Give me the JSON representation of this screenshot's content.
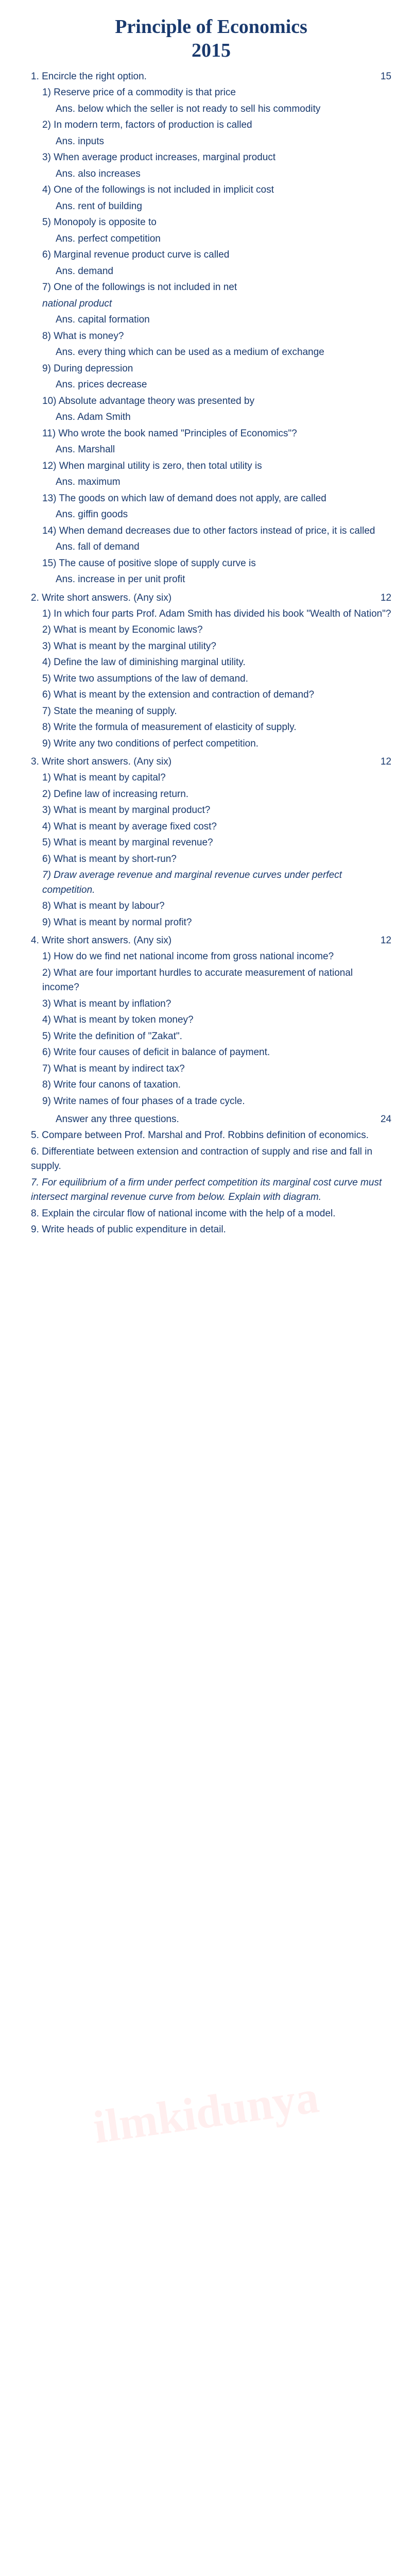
{
  "title": "Principle of Economics",
  "year": "2015",
  "s1": {
    "h": "1. Encircle the right option.",
    "m": "15",
    "q": [
      {
        "q": "1) Reserve price of a commodity is that price",
        "a": "Ans. below which the seller is not ready to sell his commodity"
      },
      {
        "q": "2) In modern term, factors of production is called",
        "a": "Ans. inputs"
      },
      {
        "q": "3) When average product increases, marginal product",
        "a": "Ans. also increases"
      },
      {
        "q": "4) One of the followings is not included in implicit cost",
        "a": "Ans. rent of building"
      },
      {
        "q": "5) Monopoly is opposite to",
        "a": "Ans. perfect competition"
      },
      {
        "q": "6) Marginal revenue product curve is called",
        "a": "Ans. demand"
      },
      {
        "q": "7) One of the followings is not included in net",
        "a": "Ans. capital formation",
        "it": "national product"
      },
      {
        "q": "8) What is money?",
        "a": "Ans. every thing which can be used as a medium of exchange"
      },
      {
        "q": "9) During depression",
        "a": "Ans. prices decrease"
      },
      {
        "q": "10) Absolute advantage theory was presented by",
        "a": "Ans. Adam Smith"
      },
      {
        "q": "11) Who wrote the book named \"Principles of Economics\"?",
        "a": "Ans. Marshall"
      },
      {
        "q": "12) When marginal utility is zero, then total utility is",
        "a": "Ans. maximum"
      },
      {
        "q": "13) The goods on which law of demand does not apply, are called",
        "a": "Ans. giffin goods"
      },
      {
        "q": "14) When demand decreases due to other factors instead of price, it is called",
        "a": "Ans. fall of demand"
      },
      {
        "q": "15) The cause of positive slope of supply curve is",
        "a": "Ans. increase in per unit profit"
      }
    ]
  },
  "s2": {
    "h": "2. Write short answers. (Any six)",
    "m": "12",
    "q": [
      "1) In which four parts Prof. Adam Smith has divided his book \"Wealth of Nation\"?",
      "2) What is meant by Economic laws?",
      "3) What is meant by the marginal utility?",
      "4) Define the law of diminishing marginal utility.",
      "5) Write two assumptions of the law of demand.",
      "6) What is meant by the extension and contraction of demand?",
      "7) State the meaning of supply.",
      "8) Write the formula of measurement of elasticity of supply.",
      "9) Write any two conditions of perfect competition."
    ]
  },
  "s3": {
    "h": "3. Write short answers. (Any six)",
    "m": "12",
    "q": [
      "1) What is meant by capital?",
      "2) Define law of increasing return.",
      "3) What is meant by marginal product?",
      "4) What is meant by average fixed cost?",
      "5) What is meant by marginal revenue?",
      "6) What is meant by short-run?",
      "8) What is meant by labour?",
      "9) What is meant by normal profit?"
    ],
    "qit": "7) Draw average revenue and marginal revenue curves under perfect competition."
  },
  "s4": {
    "h": "4. Write short answers. (Any six)",
    "m": "12",
    "q": [
      "1) How do we find net national income from gross national income?",
      "2) What are four important hurdles to accurate measurement of national income?",
      "3) What is meant by inflation?",
      "4) What is meant by token money?",
      "5) Write the definition of \"Zakat\".",
      "6) Write four causes of deficit in balance of payment.",
      "7) What is meant by indirect tax?",
      "8) Write four canons of taxation.",
      "9) Write names of four phases of a trade cycle."
    ]
  },
  "s5": {
    "h": "Answer any three questions.",
    "m": "24",
    "q": [
      "5. Compare between Prof. Marshal and Prof. Robbins definition of economics.",
      "6. Differentiate between extension and contraction of supply and rise and fall in supply.",
      "8. Explain the circular flow of national income with the help of a model.",
      "9. Write heads of public expenditure in detail."
    ],
    "qit": "7. For equilibrium of a firm under perfect competition its marginal cost curve must intersect marginal revenue curve from below. Explain with diagram."
  },
  "wm": "ilmkidunya"
}
